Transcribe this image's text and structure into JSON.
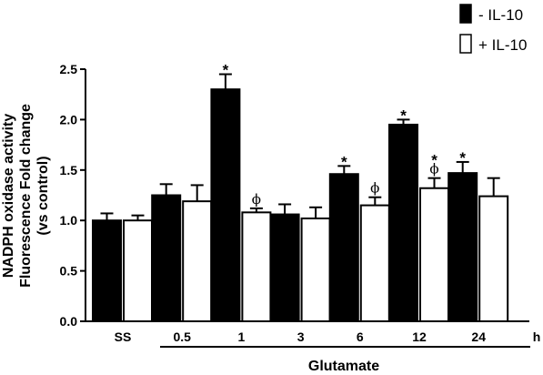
{
  "chart_data": {
    "type": "bar",
    "categories": [
      "SS",
      "0.5",
      "1",
      "3",
      "6",
      "12",
      "24"
    ],
    "x_unit": "h",
    "group_label": "Glutamate",
    "ylabel_lines": [
      "NADPH oxidase activity",
      "Fluorescence Fold change",
      "(vs control)"
    ],
    "ylim": [
      0.0,
      2.5
    ],
    "yticks": [
      "0.0",
      "0.5",
      "1.0",
      "1.5",
      "2.0",
      "2.5"
    ],
    "grid": false,
    "legend_position": "top-right",
    "series": [
      {
        "name": "- IL-10",
        "color": "#000000",
        "values": [
          1.0,
          1.25,
          2.3,
          1.06,
          1.46,
          1.95,
          1.47
        ],
        "errors": [
          0.07,
          0.11,
          0.15,
          0.1,
          0.08,
          0.05,
          0.11
        ],
        "annotations": [
          "",
          "",
          "*",
          "",
          "*",
          "*",
          "*"
        ]
      },
      {
        "name": "+ IL-10",
        "color": "#ffffff",
        "values": [
          1.0,
          1.19,
          1.08,
          1.02,
          1.15,
          1.32,
          1.24
        ],
        "errors": [
          0.05,
          0.16,
          0.04,
          0.11,
          0.08,
          0.1,
          0.18
        ],
        "annotations": [
          "",
          "",
          "ϕ",
          "",
          "ϕ",
          "*ϕ",
          ""
        ]
      }
    ]
  }
}
